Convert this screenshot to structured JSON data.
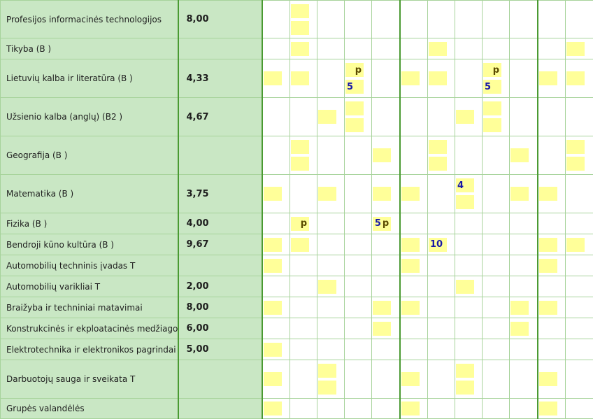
{
  "columns": {
    "count": 12,
    "week_boundaries": [
      5,
      10
    ]
  },
  "rows": [
    {
      "subject": "Profesijos informacinės technologijos",
      "average": "8,00",
      "h": 54,
      "cells": [
        [],
        [
          {
            "t": ""
          },
          {
            "t": ""
          }
        ],
        [],
        [],
        [],
        [],
        [],
        [],
        [],
        [],
        [],
        []
      ]
    },
    {
      "subject": "Tikyba (B )",
      "average": "",
      "h": 30,
      "cells": [
        [],
        [
          {
            "t": ""
          }
        ],
        [],
        [],
        [],
        [],
        [
          {
            "t": ""
          }
        ],
        [],
        [],
        [],
        [],
        [
          {
            "t": ""
          }
        ]
      ]
    },
    {
      "subject": "Lietuvių kalba ir literatūra (B )",
      "average": "4,33",
      "h": 55,
      "cells": [
        [
          {
            "t": ""
          }
        ],
        [
          {
            "t": ""
          }
        ],
        [],
        [
          {
            "t": "",
            "p": "p"
          },
          {
            "t": "5"
          }
        ],
        [],
        [
          {
            "t": ""
          }
        ],
        [
          {
            "t": ""
          }
        ],
        [],
        [
          {
            "t": "",
            "p": "p"
          },
          {
            "t": "5"
          }
        ],
        [],
        [
          {
            "t": ""
          }
        ],
        [
          {
            "t": ""
          }
        ]
      ]
    },
    {
      "subject": "Užsienio kalba (anglų) (B2 )",
      "average": "4,67",
      "h": 55,
      "cells": [
        [],
        [],
        [
          {
            "t": ""
          }
        ],
        [
          {
            "t": ""
          },
          {
            "t": ""
          }
        ],
        [],
        [],
        [],
        [
          {
            "t": ""
          }
        ],
        [
          {
            "t": ""
          },
          {
            "t": ""
          }
        ],
        [],
        [],
        []
      ]
    },
    {
      "subject": "Geografija (B )",
      "average": "",
      "h": 55,
      "cells": [
        [],
        [
          {
            "t": ""
          },
          {
            "t": ""
          }
        ],
        [],
        [],
        [
          {
            "t": ""
          }
        ],
        [],
        [
          {
            "t": ""
          },
          {
            "t": ""
          }
        ],
        [],
        [],
        [
          {
            "t": ""
          }
        ],
        [],
        [
          {
            "t": ""
          },
          {
            "t": ""
          }
        ]
      ]
    },
    {
      "subject": "Matematika (B )",
      "average": "3,75",
      "h": 55,
      "cells": [
        [
          {
            "t": ""
          }
        ],
        [],
        [
          {
            "t": ""
          }
        ],
        [],
        [
          {
            "t": ""
          }
        ],
        [
          {
            "t": ""
          }
        ],
        [],
        [
          {
            "t": "4"
          },
          {
            "t": ""
          }
        ],
        [],
        [
          {
            "t": ""
          }
        ],
        [
          {
            "t": ""
          }
        ],
        []
      ]
    },
    {
      "subject": "Fizika (B )",
      "average": "4,00",
      "h": 30,
      "cells": [
        [],
        [
          {
            "t": "",
            "p": "p"
          }
        ],
        [],
        [],
        [
          {
            "t": "5",
            "p": "p"
          }
        ],
        [],
        [],
        [],
        [],
        [],
        [],
        []
      ]
    },
    {
      "subject": "Bendroji kūno kultūra (B )",
      "average": "9,67",
      "h": 30,
      "cells": [
        [
          {
            "t": ""
          }
        ],
        [
          {
            "t": ""
          }
        ],
        [],
        [],
        [],
        [
          {
            "t": ""
          }
        ],
        [
          {
            "t": "10"
          }
        ],
        [],
        [],
        [],
        [
          {
            "t": ""
          }
        ],
        [
          {
            "t": ""
          }
        ]
      ]
    },
    {
      "subject": "Automobilių techninis įvadas T",
      "average": "",
      "h": 30,
      "cells": [
        [
          {
            "t": ""
          }
        ],
        [],
        [],
        [],
        [],
        [
          {
            "t": ""
          }
        ],
        [],
        [],
        [],
        [],
        [
          {
            "t": ""
          }
        ],
        []
      ]
    },
    {
      "subject": "Automobilių varikliai T",
      "average": "2,00",
      "h": 30,
      "cells": [
        [],
        [],
        [
          {
            "t": ""
          }
        ],
        [],
        [],
        [],
        [],
        [
          {
            "t": ""
          }
        ],
        [],
        [],
        [],
        []
      ]
    },
    {
      "subject": "Braižyba ir techniniai matavimai",
      "average": "8,00",
      "h": 30,
      "cells": [
        [
          {
            "t": ""
          }
        ],
        [],
        [],
        [],
        [
          {
            "t": ""
          }
        ],
        [
          {
            "t": ""
          }
        ],
        [],
        [],
        [],
        [
          {
            "t": ""
          }
        ],
        [
          {
            "t": ""
          }
        ],
        []
      ]
    },
    {
      "subject": "Konstrukcinės ir ekploatacinės medžiagos",
      "average": "6,00",
      "h": 30,
      "cells": [
        [],
        [],
        [],
        [],
        [
          {
            "t": ""
          }
        ],
        [],
        [],
        [],
        [],
        [
          {
            "t": ""
          }
        ],
        [],
        []
      ]
    },
    {
      "subject": "Elektrotechnika ir elektronikos pagrindai",
      "average": "5,00",
      "h": 30,
      "cells": [
        [
          {
            "t": ""
          }
        ],
        [],
        [],
        [],
        [],
        [],
        [],
        [],
        [],
        [],
        [],
        []
      ]
    },
    {
      "subject": "Darbuotojų sauga ir sveikata T",
      "average": "",
      "h": 55,
      "cells": [
        [
          {
            "t": ""
          }
        ],
        [],
        [
          {
            "t": ""
          },
          {
            "t": ""
          }
        ],
        [],
        [],
        [
          {
            "t": ""
          }
        ],
        [],
        [
          {
            "t": ""
          },
          {
            "t": ""
          }
        ],
        [],
        [],
        [
          {
            "t": ""
          }
        ],
        []
      ]
    },
    {
      "subject": "Grupės valandėlės",
      "average": "",
      "h": 29,
      "cells": [
        [
          {
            "t": ""
          }
        ],
        [],
        [],
        [],
        [],
        [
          {
            "t": ""
          }
        ],
        [],
        [],
        [],
        [],
        [
          {
            "t": ""
          }
        ],
        []
      ]
    }
  ]
}
